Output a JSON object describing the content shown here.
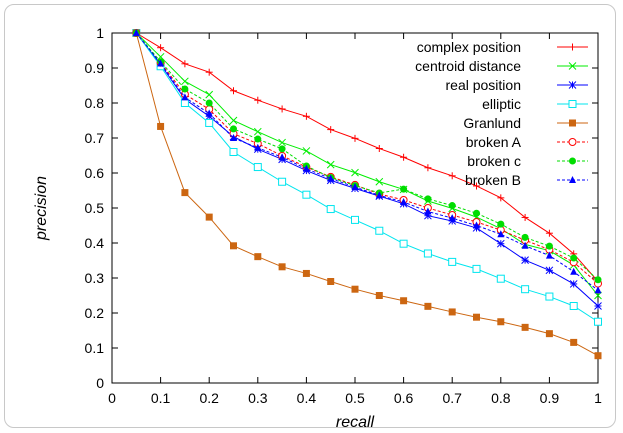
{
  "chart_data": {
    "type": "line",
    "xlabel": "recall",
    "ylabel": "precision",
    "xlim": [
      0,
      1
    ],
    "ylim": [
      0,
      1
    ],
    "xticks": [
      "0",
      "0.1",
      "0.2",
      "0.3",
      "0.4",
      "0.5",
      "0.6",
      "0.7",
      "0.8",
      "0.9",
      "1"
    ],
    "yticks": [
      "0",
      "0.1",
      "0.2",
      "0.3",
      "0.4",
      "0.5",
      "0.6",
      "0.7",
      "0.8",
      "0.9",
      "1"
    ],
    "grid": false,
    "legend_position": "top-right",
    "x": [
      0.05,
      0.1,
      0.15,
      0.2,
      0.25,
      0.3,
      0.35,
      0.4,
      0.45,
      0.5,
      0.55,
      0.6,
      0.65,
      0.7,
      0.75,
      0.8,
      0.85,
      0.9,
      0.95,
      1.0
    ],
    "series": [
      {
        "name": "complex position",
        "color": "#ff0000",
        "marker": "plus",
        "dashed": false,
        "values": [
          1.0,
          0.958,
          0.912,
          0.888,
          0.835,
          0.808,
          0.783,
          0.762,
          0.724,
          0.699,
          0.67,
          0.645,
          0.615,
          0.592,
          0.563,
          0.529,
          0.473,
          0.428,
          0.369,
          0.29
        ]
      },
      {
        "name": "centroid distance",
        "color": "#00ee00",
        "marker": "cross",
        "dashed": false,
        "values": [
          1.0,
          0.932,
          0.862,
          0.824,
          0.75,
          0.718,
          0.687,
          0.663,
          0.624,
          0.601,
          0.575,
          0.553,
          0.52,
          0.499,
          0.474,
          0.441,
          0.396,
          0.378,
          0.337,
          0.25
        ]
      },
      {
        "name": "real position",
        "color": "#0000ff",
        "marker": "star",
        "dashed": false,
        "values": [
          1.0,
          0.91,
          0.811,
          0.762,
          0.704,
          0.668,
          0.639,
          0.607,
          0.579,
          0.556,
          0.534,
          0.512,
          0.478,
          0.463,
          0.443,
          0.398,
          0.351,
          0.322,
          0.283,
          0.22
        ]
      },
      {
        "name": "elliptic",
        "color": "#00e5ee",
        "marker": "square-open",
        "dashed": false,
        "values": [
          1.0,
          0.905,
          0.8,
          0.743,
          0.66,
          0.617,
          0.575,
          0.538,
          0.497,
          0.466,
          0.435,
          0.398,
          0.37,
          0.346,
          0.326,
          0.298,
          0.268,
          0.247,
          0.22,
          0.175
        ]
      },
      {
        "name": "Granlund",
        "color": "#cc6611",
        "marker": "square-filled",
        "dashed": false,
        "values": [
          1.0,
          0.733,
          0.544,
          0.474,
          0.392,
          0.361,
          0.332,
          0.313,
          0.29,
          0.268,
          0.25,
          0.235,
          0.219,
          0.203,
          0.188,
          0.175,
          0.159,
          0.141,
          0.116,
          0.078
        ]
      },
      {
        "name": "broken A",
        "color": "#ff0000",
        "marker": "circle-open",
        "dashed": true,
        "values": [
          1.0,
          0.915,
          0.825,
          0.782,
          0.712,
          0.684,
          0.649,
          0.617,
          0.589,
          0.566,
          0.54,
          0.523,
          0.5,
          0.48,
          0.46,
          0.437,
          0.408,
          0.381,
          0.345,
          0.284
        ]
      },
      {
        "name": "broken c",
        "color": "#00dd00",
        "marker": "circle-filled",
        "dashed": true,
        "values": [
          1.0,
          0.918,
          0.84,
          0.8,
          0.726,
          0.697,
          0.669,
          0.62,
          0.587,
          0.564,
          0.543,
          0.554,
          0.526,
          0.507,
          0.485,
          0.454,
          0.416,
          0.391,
          0.357,
          0.295
        ]
      },
      {
        "name": "broken B",
        "color": "#0000ff",
        "marker": "triangle",
        "dashed": true,
        "values": [
          1.0,
          0.913,
          0.816,
          0.77,
          0.7,
          0.672,
          0.645,
          0.612,
          0.584,
          0.56,
          0.536,
          0.517,
          0.49,
          0.471,
          0.45,
          0.425,
          0.392,
          0.364,
          0.318,
          0.265
        ]
      }
    ]
  }
}
